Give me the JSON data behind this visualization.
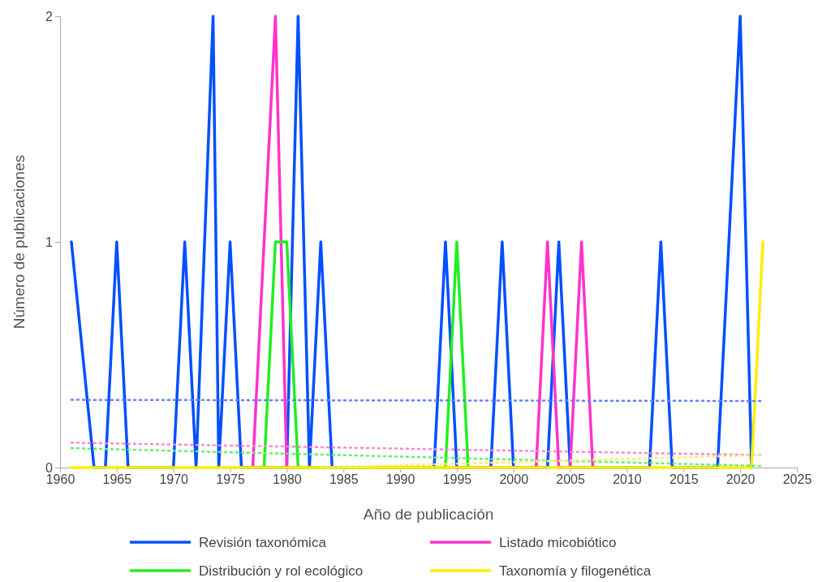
{
  "chart_data": {
    "type": "line",
    "xlabel": "Año de publicación",
    "ylabel": "Número de publicaciones",
    "xlim": [
      1960,
      2025
    ],
    "xticks": [
      1960,
      1965,
      1970,
      1975,
      1980,
      1985,
      1990,
      1995,
      2000,
      2005,
      2010,
      2015,
      2020,
      2025
    ],
    "ylim": [
      0,
      2
    ],
    "yticks": [
      0,
      1,
      2
    ],
    "grid": false,
    "legend": "bottom",
    "marker": "none",
    "series": [
      {
        "name": "Revisión taxonómica",
        "color": "#0050ff",
        "line_style": "solid",
        "x": [
          1961,
          1963,
          1964,
          1965,
          1966,
          1970,
          1971,
          1972,
          1973.5,
          1974,
          1975,
          1976,
          1980,
          1981,
          1982,
          1983,
          1984,
          1993,
          1994,
          1995,
          1998,
          1999,
          2000,
          2003,
          2004,
          2005,
          2012,
          2013,
          2014,
          2018,
          2020,
          2021
        ],
        "values": [
          1,
          0,
          0,
          1,
          0,
          0,
          1,
          0,
          2,
          0,
          1,
          0,
          0,
          2,
          0,
          1,
          0,
          0,
          1,
          0,
          0,
          1,
          0,
          0,
          1,
          0,
          0,
          1,
          0,
          0,
          2,
          0
        ]
      },
      {
        "name": "Listado micobiótico",
        "color": "#ff33cc",
        "line_style": "solid",
        "x": [
          1977,
          1979,
          1980,
          2002,
          2003,
          2004,
          2005,
          2006,
          2007
        ],
        "values": [
          0,
          2,
          0,
          0,
          1,
          0,
          0,
          1,
          0
        ]
      },
      {
        "name": "Distribución y rol ecológico",
        "color": "#22ee22",
        "line_style": "solid",
        "x": [
          1978,
          1979,
          1980,
          1981,
          1994,
          1995,
          1996
        ],
        "values": [
          0,
          1,
          1,
          0,
          0,
          1,
          0
        ]
      },
      {
        "name": "Taxonomía y filogenética",
        "color": "#ffee00",
        "line_style": "solid",
        "x": [
          1961,
          2021,
          2022
        ],
        "values": [
          0,
          0,
          1
        ]
      },
      {
        "color": "#6680ff",
        "line_style": "dotted",
        "x": [
          1961,
          2022
        ],
        "values": [
          0.3,
          0.295
        ]
      },
      {
        "color": "#ff88cc",
        "line_style": "dotted",
        "x": [
          1961,
          2022
        ],
        "values": [
          0.11,
          0.055
        ]
      },
      {
        "color": "#66ee66",
        "line_style": "dotted",
        "x": [
          1961,
          2022
        ],
        "values": [
          0.086,
          0.007
        ]
      },
      {
        "color": "#ffee66",
        "line_style": "dotted",
        "x": [
          1983,
          2022
        ],
        "values": [
          0,
          0.055
        ]
      }
    ]
  }
}
